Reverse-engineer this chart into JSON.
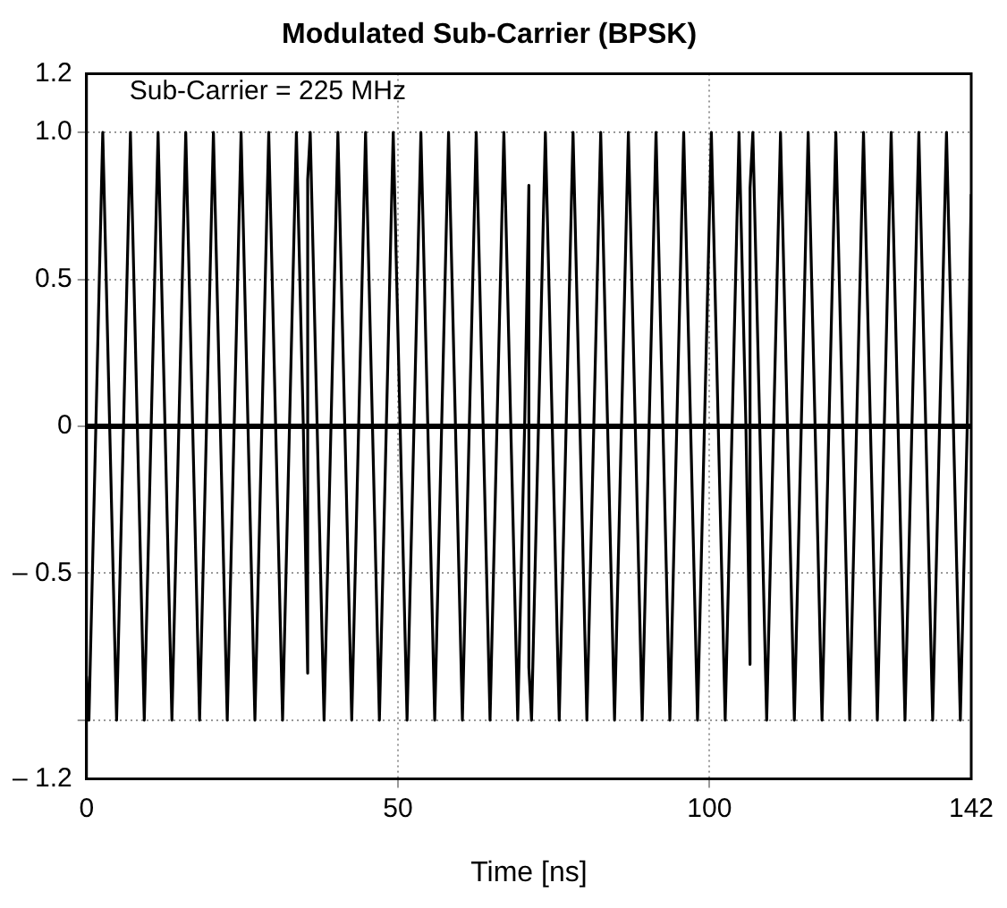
{
  "chart_data": {
    "type": "line",
    "title": "Modulated Sub-Carrier (BPSK)",
    "xlabel": "Time [ns]",
    "annotations": [
      "Sub-Carrier = 225 MHz"
    ],
    "x": [
      0,
      0.39,
      1.5,
      2.61,
      3.72,
      4.83,
      5.94,
      7.05,
      8.16,
      9.27,
      10.38,
      11.49,
      12.6,
      13.71,
      14.82,
      15.93,
      17.04,
      18.15,
      19.26,
      20.37,
      21.48,
      22.59,
      23.7,
      24.81,
      25.92,
      27.03,
      28.14,
      29.25,
      30.36,
      31.47,
      32.58,
      33.69,
      34.8,
      35.5,
      35.5,
      35.91,
      37.02,
      38.13,
      39.24,
      40.35,
      41.46,
      42.57,
      43.68,
      44.79,
      45.9,
      47.01,
      48.12,
      49.23,
      50.34,
      51.45,
      52.56,
      53.67,
      54.78,
      55.89,
      57,
      58.11,
      59.22,
      60.33,
      61.44,
      62.55,
      63.66,
      64.77,
      65.88,
      66.99,
      68.1,
      69.21,
      70.32,
      71,
      71,
      71.43,
      72.54,
      73.65,
      74.76,
      75.87,
      76.98,
      78.09,
      79.2,
      80.31,
      81.42,
      82.53,
      83.64,
      84.75,
      85.86,
      86.97,
      88.08,
      89.19,
      90.3,
      91.41,
      92.52,
      93.63,
      94.74,
      95.85,
      96.96,
      98.07,
      99.18,
      100.29,
      101.4,
      102.51,
      103.62,
      104.73,
      105.84,
      106.5,
      106.5,
      106.95,
      108.06,
      109.17,
      110.28,
      111.39,
      112.5,
      113.61,
      114.72,
      115.83,
      116.94,
      118.05,
      119.16,
      120.27,
      121.38,
      122.49,
      123.6,
      124.71,
      125.82,
      126.93,
      128.04,
      129.15,
      130.26,
      131.37,
      132.48,
      133.59,
      134.7,
      135.81,
      136.92,
      138.03,
      139.14,
      140.25,
      141.36,
      142
    ],
    "series": [
      {
        "color": "#000000",
        "values": [
          -0.85,
          -1,
          0,
          1,
          0,
          -1,
          0,
          1,
          0,
          -1,
          0,
          1,
          0,
          -1,
          0,
          1,
          0,
          -1,
          0,
          1,
          0,
          -1,
          0,
          1,
          0,
          -1,
          0,
          1,
          0,
          -1,
          0,
          1,
          0,
          -0.84,
          0.84,
          1,
          0,
          -1,
          0,
          1,
          0,
          -1,
          0,
          1,
          0,
          -1,
          0,
          1,
          0,
          -1,
          0,
          1,
          0,
          -1,
          0,
          1,
          0,
          -1,
          0,
          1,
          0,
          -1,
          0,
          1,
          0,
          -1,
          0,
          0.82,
          -0.82,
          -1,
          0,
          1,
          0,
          -1,
          0,
          1,
          0,
          -1,
          0,
          1,
          0,
          -1,
          0,
          1,
          0,
          -1,
          0,
          1,
          0,
          -1,
          0,
          1,
          0,
          -1,
          0,
          1,
          0,
          -1,
          0,
          1,
          0,
          -0.81,
          0.81,
          1,
          0,
          -1,
          0,
          1,
          0,
          -1,
          0,
          1,
          0,
          -1,
          0,
          1,
          0,
          -1,
          0,
          1,
          0,
          -1,
          0,
          1,
          0,
          -1,
          0,
          1,
          0,
          -1,
          0,
          1,
          0,
          -1,
          0,
          0.79
        ]
      }
    ],
    "xlim": [
      0,
      142
    ],
    "xticks": [
      0,
      50,
      100,
      142
    ],
    "ylim": [
      -1.2,
      1.2
    ],
    "yticks": [
      {
        "value": -1.2,
        "label": "– 1.2"
      },
      {
        "value": -1,
        "label": null
      },
      {
        "value": -0.5,
        "label": "– 0.5"
      },
      0,
      0.5,
      {
        "value": 1,
        "label": "1.0"
      },
      1.2
    ],
    "ref_lines": [
      {
        "axis": "y",
        "value": 0,
        "color": "#000000"
      }
    ],
    "grid": true,
    "marker": "none",
    "line_style": "solid"
  }
}
